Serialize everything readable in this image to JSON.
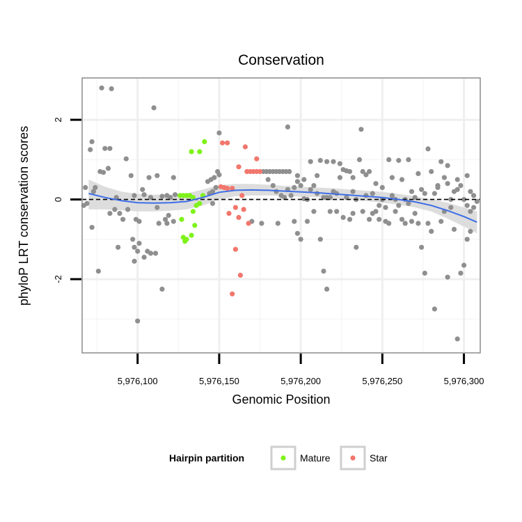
{
  "chart_data": {
    "type": "scatter",
    "title": "Conservation",
    "xlabel": "Genomic Position",
    "ylabel": "phyloP LRT conservation scores",
    "xlim": [
      5976066,
      5976310
    ],
    "ylim": [
      -3.85,
      3.05
    ],
    "x_ticks": [
      5976100,
      5976150,
      5976200,
      5976250,
      5976300
    ],
    "x_tick_labels": [
      "5,976,100",
      "5,976,150",
      "5,976,200",
      "5,976,250",
      "5,976,300"
    ],
    "y_ticks": [
      -2,
      0,
      2
    ],
    "y_tick_labels": [
      "-2",
      "0",
      "2"
    ],
    "grid": true,
    "reference_line": {
      "y": 0,
      "style": "dashed"
    },
    "legend": {
      "title": "Hairpin partition",
      "position": "bottom",
      "entries": [
        {
          "label": "Mature",
          "color": "#7ef219"
        },
        {
          "label": "Star",
          "color": "#f2766d"
        }
      ]
    },
    "colors": {
      "other": "#8f8f8f",
      "mature": "#7ef219",
      "star": "#f2766d",
      "smooth_line": "#3d6de6",
      "confidence_band": "#d9d9d9"
    },
    "smooth": {
      "x": [
        5976070,
        5976080,
        5976090,
        5976100,
        5976110,
        5976120,
        5976130,
        5976140,
        5976150,
        5976160,
        5976170,
        5976180,
        5976190,
        5976200,
        5976210,
        5976220,
        5976230,
        5976240,
        5976250,
        5976260,
        5976270,
        5976280,
        5976290,
        5976300,
        5976308
      ],
      "y": [
        0.15,
        0.05,
        -0.03,
        -0.08,
        -0.09,
        -0.08,
        -0.05,
        0.05,
        0.18,
        0.23,
        0.24,
        0.23,
        0.21,
        0.19,
        0.17,
        0.14,
        0.11,
        0.08,
        0.05,
        0.0,
        -0.06,
        -0.15,
        -0.28,
        -0.43,
        -0.57
      ],
      "lower": [
        -0.25,
        -0.25,
        -0.27,
        -0.3,
        -0.3,
        -0.28,
        -0.25,
        -0.15,
        0.0,
        0.08,
        0.1,
        0.1,
        0.09,
        0.07,
        0.06,
        0.03,
        0.0,
        -0.04,
        -0.08,
        -0.13,
        -0.2,
        -0.3,
        -0.48,
        -0.68,
        -0.85
      ],
      "upper": [
        0.5,
        0.32,
        0.2,
        0.14,
        0.12,
        0.12,
        0.15,
        0.25,
        0.36,
        0.39,
        0.39,
        0.37,
        0.34,
        0.32,
        0.3,
        0.28,
        0.25,
        0.22,
        0.19,
        0.14,
        0.08,
        0.0,
        -0.08,
        -0.2,
        -0.3
      ]
    },
    "series": [
      {
        "name": "Mature",
        "points": [
          [
            5976126,
            0.1
          ],
          [
            5976128,
            0.1
          ],
          [
            5976130,
            0.1
          ],
          [
            5976132,
            0.1
          ],
          [
            5976134,
            0.05
          ],
          [
            5976141,
            1.45
          ],
          [
            5976138,
            1.2
          ],
          [
            5976133,
            1.2
          ],
          [
            5976127,
            -0.5
          ],
          [
            5976128,
            -0.95
          ],
          [
            5976130,
            -1.0
          ],
          [
            5976129,
            -1.05
          ],
          [
            5976133,
            -0.9
          ],
          [
            5976135,
            -0.65
          ],
          [
            5976134,
            -0.3
          ],
          [
            5976136,
            -0.15
          ],
          [
            5976138,
            -0.1
          ],
          [
            5976140,
            0.1
          ]
        ]
      },
      {
        "name": "Star",
        "points": [
          [
            5976152,
            1.42
          ],
          [
            5976155,
            1.42
          ],
          [
            5976166,
            1.32
          ],
          [
            5976173,
            1.02
          ],
          [
            5976162,
            0.82
          ],
          [
            5976167,
            0.7
          ],
          [
            5976169,
            0.7
          ],
          [
            5976171,
            0.7
          ],
          [
            5976173,
            0.7
          ],
          [
            5976175,
            0.7
          ],
          [
            5976151,
            0.32
          ],
          [
            5976153,
            0.3
          ],
          [
            5976155,
            0.28
          ],
          [
            5976158,
            0.28
          ],
          [
            5976164,
            0.1
          ],
          [
            5976160,
            -0.2
          ],
          [
            5976165,
            -0.25
          ],
          [
            5976156,
            -0.35
          ],
          [
            5976162,
            -0.45
          ],
          [
            5976168,
            -0.6
          ],
          [
            5976160,
            -1.25
          ],
          [
            5976163,
            -1.9
          ],
          [
            5976158,
            -2.37
          ]
        ]
      },
      {
        "name": "",
        "points": [
          [
            5976078,
            2.8
          ],
          [
            5976084,
            2.78
          ],
          [
            5976110,
            2.3
          ],
          [
            5976150,
            1.67
          ],
          [
            5976192,
            1.82
          ],
          [
            5976237,
            1.76
          ],
          [
            5976072,
            1.45
          ],
          [
            5976071,
            1.25
          ],
          [
            5976080,
            1.28
          ],
          [
            5976083,
            1.28
          ],
          [
            5976093,
            1.02
          ],
          [
            5976077,
            0.7
          ],
          [
            5976079,
            0.68
          ],
          [
            5976082,
            0.78
          ],
          [
            5976096,
            0.6
          ],
          [
            5976103,
            0.25
          ],
          [
            5976107,
            0.55
          ],
          [
            5976112,
            0.6
          ],
          [
            5976122,
            0.55
          ],
          [
            5976068,
            0.3
          ],
          [
            5976074,
            0.3
          ],
          [
            5976087,
            0.05
          ],
          [
            5976098,
            0.1
          ],
          [
            5976104,
            0.12
          ],
          [
            5976108,
            0.05
          ],
          [
            5976115,
            0.08
          ],
          [
            5976118,
            0.1
          ],
          [
            5976120,
            0.05
          ],
          [
            5976123,
            0.12
          ],
          [
            5976069,
            -0.1
          ],
          [
            5976073,
            0.2
          ],
          [
            5976067,
            -0.15
          ],
          [
            5976072,
            -0.7
          ],
          [
            5976076,
            -1.8
          ],
          [
            5976083,
            -0.35
          ],
          [
            5976086,
            -0.25
          ],
          [
            5976089,
            -0.35
          ],
          [
            5976091,
            -0.5
          ],
          [
            5976094,
            -0.25
          ],
          [
            5976097,
            -1.0
          ],
          [
            5976099,
            -0.5
          ],
          [
            5976101,
            -0.55
          ],
          [
            5976088,
            -1.2
          ],
          [
            5976098,
            -1.2
          ],
          [
            5976100,
            -1.3
          ],
          [
            5976101,
            -1.1
          ],
          [
            5976104,
            -1.45
          ],
          [
            5976106,
            -1.3
          ],
          [
            5976108,
            -1.35
          ],
          [
            5976111,
            -1.35
          ],
          [
            5976098,
            -1.55
          ],
          [
            5976100,
            -3.05
          ],
          [
            5976115,
            -2.25
          ],
          [
            5976113,
            -0.6
          ],
          [
            5976117,
            -0.5
          ],
          [
            5976119,
            -0.4
          ],
          [
            5976122,
            -0.55
          ],
          [
            5976112,
            -0.2
          ],
          [
            5976118,
            -0.6
          ],
          [
            5976145,
            0.5
          ],
          [
            5976147,
            0.55
          ],
          [
            5976149,
            0.7
          ],
          [
            5976143,
            0.45
          ],
          [
            5976144,
            0.15
          ],
          [
            5976146,
            0.2
          ],
          [
            5976148,
            0.3
          ],
          [
            5976150,
            0.62
          ],
          [
            5976146,
            -0.1
          ],
          [
            5976177,
            0.7
          ],
          [
            5976179,
            0.7
          ],
          [
            5976181,
            0.7
          ],
          [
            5976183,
            0.7
          ],
          [
            5976185,
            0.7
          ],
          [
            5976187,
            0.7
          ],
          [
            5976189,
            0.7
          ],
          [
            5976191,
            0.7
          ],
          [
            5976193,
            0.7
          ],
          [
            5976180,
            0.5
          ],
          [
            5976183,
            0.35
          ],
          [
            5976185,
            0.2
          ],
          [
            5976188,
            0.1
          ],
          [
            5976190,
            0.05
          ],
          [
            5976192,
            0.25
          ],
          [
            5976194,
            0.1
          ],
          [
            5976196,
            0.3
          ],
          [
            5976198,
            0.6
          ],
          [
            5976200,
            0.35
          ],
          [
            5976202,
            0.5
          ],
          [
            5976204,
            0.0
          ],
          [
            5976206,
            0.95
          ],
          [
            5976208,
            0.35
          ],
          [
            5976210,
            0.15
          ],
          [
            5976212,
            0.98
          ],
          [
            5976214,
            0.05
          ],
          [
            5976216,
            0.95
          ],
          [
            5976218,
            0.05
          ],
          [
            5976220,
            0.2
          ],
          [
            5976222,
            0.15
          ],
          [
            5976224,
            0.9
          ],
          [
            5976226,
            0.75
          ],
          [
            5976228,
            0.72
          ],
          [
            5976230,
            0.7
          ],
          [
            5976232,
            0.55
          ],
          [
            5976234,
            0.0
          ],
          [
            5976236,
            1.0
          ],
          [
            5976238,
            0.7
          ],
          [
            5976240,
            0.62
          ],
          [
            5976242,
            0.7
          ],
          [
            5976244,
            0.15
          ],
          [
            5976246,
            -0.3
          ],
          [
            5976248,
            -0.15
          ],
          [
            5976250,
            0.3
          ],
          [
            5976252,
            -0.2
          ],
          [
            5976254,
            1.0
          ],
          [
            5976256,
            0.55
          ],
          [
            5976258,
            0.0
          ],
          [
            5976260,
            0.98
          ],
          [
            5976262,
            0.5
          ],
          [
            5976264,
            0.0
          ],
          [
            5976266,
            1.0
          ],
          [
            5976268,
            0.2
          ],
          [
            5976270,
            -0.35
          ],
          [
            5976272,
            0.65
          ],
          [
            5976274,
            0.25
          ],
          [
            5976276,
            0.15
          ],
          [
            5976278,
            1.27
          ],
          [
            5976280,
            0.7
          ],
          [
            5976282,
            0.15
          ],
          [
            5976284,
            0.35
          ],
          [
            5976286,
            0.95
          ],
          [
            5976288,
            0.55
          ],
          [
            5976290,
            0.4
          ],
          [
            5976292,
            0.0
          ],
          [
            5976294,
            0.2
          ],
          [
            5976296,
            0.25
          ],
          [
            5976298,
            0.35
          ],
          [
            5976300,
            0.0
          ],
          [
            5976302,
            -0.15
          ],
          [
            5976304,
            -0.3
          ],
          [
            5976306,
            0.1
          ],
          [
            5976308,
            -0.05
          ],
          [
            5976170,
            -0.55
          ],
          [
            5976176,
            -0.6
          ],
          [
            5976186,
            -0.6
          ],
          [
            5976196,
            -0.55
          ],
          [
            5976198,
            -0.85
          ],
          [
            5976200,
            -1.0
          ],
          [
            5976204,
            -0.55
          ],
          [
            5976208,
            -0.3
          ],
          [
            5976212,
            -1.0
          ],
          [
            5976214,
            -1.8
          ],
          [
            5976216,
            -2.25
          ],
          [
            5976218,
            -0.3
          ],
          [
            5976222,
            -0.3
          ],
          [
            5976226,
            -0.45
          ],
          [
            5976230,
            -0.5
          ],
          [
            5976232,
            -0.35
          ],
          [
            5976234,
            -1.2
          ],
          [
            5976238,
            -0.3
          ],
          [
            5976242,
            -0.5
          ],
          [
            5976244,
            -0.35
          ],
          [
            5976248,
            -0.5
          ],
          [
            5976252,
            -0.55
          ],
          [
            5976254,
            -0.6
          ],
          [
            5976258,
            -0.3
          ],
          [
            5976262,
            -0.5
          ],
          [
            5976264,
            -0.6
          ],
          [
            5976268,
            -0.55
          ],
          [
            5976272,
            -0.6
          ],
          [
            5976274,
            -1.2
          ],
          [
            5976276,
            -1.85
          ],
          [
            5976278,
            -0.6
          ],
          [
            5976280,
            -0.8
          ],
          [
            5976282,
            -2.75
          ],
          [
            5976286,
            -0.55
          ],
          [
            5976288,
            -0.3
          ],
          [
            5976290,
            -1.95
          ],
          [
            5976292,
            -0.2
          ],
          [
            5976294,
            -0.75
          ],
          [
            5976296,
            -3.5
          ],
          [
            5976298,
            -1.85
          ],
          [
            5976300,
            -1.65
          ],
          [
            5976302,
            -1.0
          ],
          [
            5976304,
            -0.8
          ],
          [
            5976306,
            -0.2
          ],
          [
            5976216,
            0.05
          ],
          [
            5976220,
            0.95
          ],
          [
            5976224,
            0.55
          ],
          [
            5976228,
            0.05
          ],
          [
            5976232,
            0.2
          ],
          [
            5976240,
            0.1
          ],
          [
            5976246,
            0.4
          ],
          [
            5976250,
            0.0
          ],
          [
            5976256,
            0.1
          ],
          [
            5976260,
            -0.15
          ],
          [
            5976266,
            -0.1
          ],
          [
            5976270,
            0.05
          ],
          [
            5976284,
            0.3
          ],
          [
            5976290,
            0.85
          ],
          [
            5976296,
            0.5
          ],
          [
            5976302,
            0.6
          ],
          [
            5976304,
            0.2
          ],
          [
            5976198,
            0.45
          ],
          [
            5976202,
            0.02
          ],
          [
            5976206,
            0.25
          ],
          [
            5976210,
            0.6
          ]
        ]
      }
    ]
  }
}
